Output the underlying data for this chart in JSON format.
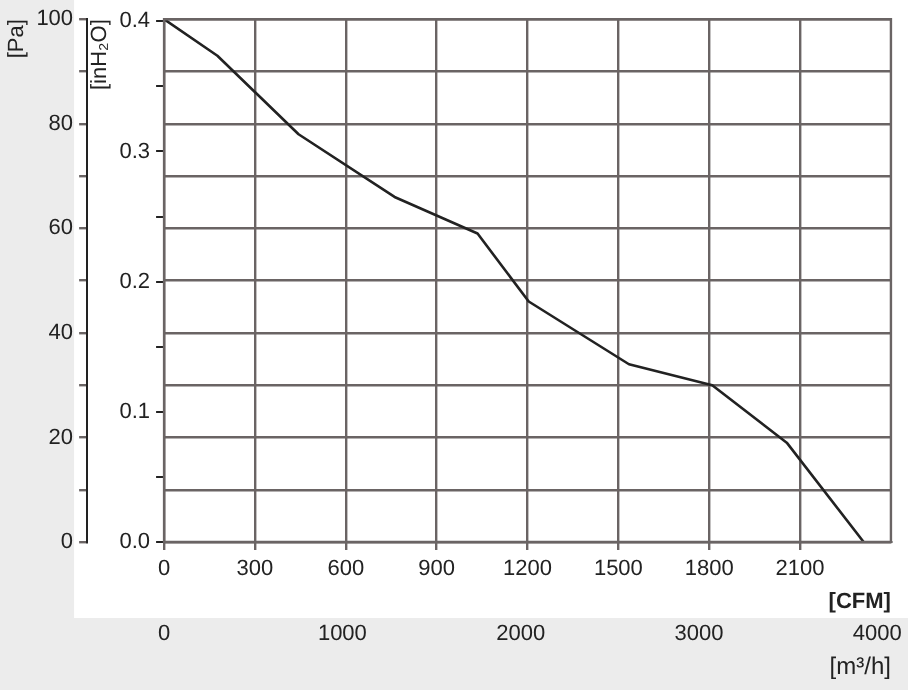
{
  "chart_data": {
    "type": "line",
    "xlabel": "[CFM]",
    "ylabel": "[Pa]",
    "y2label": "[inH₂O]",
    "x2label": "[m³/h]",
    "x": [
      0,
      176,
      444,
      761,
      1035,
      1204,
      1535,
      1810,
      2056,
      2310
    ],
    "series": [
      {
        "color": "#222222",
        "values": [
          100,
          93,
          78,
          66,
          59,
          46,
          34,
          30,
          19,
          0
        ]
      }
    ],
    "xlim": [
      0,
      2400
    ],
    "xticks": [
      0,
      300,
      600,
      900,
      1200,
      1500,
      1800,
      2100
    ],
    "x2lim": [
      0,
      4077
    ],
    "x2ticks": [
      0,
      1000,
      2000,
      3000,
      4000
    ],
    "ylim": [
      0,
      100
    ],
    "yticks": [
      0,
      {
        "value": 10,
        "label": null
      },
      20,
      {
        "value": 30,
        "label": null
      },
      40,
      {
        "value": 50,
        "label": null
      },
      60,
      {
        "value": 70,
        "label": null
      },
      80,
      {
        "value": 90,
        "label": null
      },
      100
    ],
    "y2lim": [
      0,
      0.4016
    ],
    "y2ticks": [
      {
        "value": 0,
        "label": "0.0"
      },
      {
        "value": 0.05,
        "label": null
      },
      0.1,
      {
        "value": 0.15,
        "label": null
      },
      0.2,
      {
        "value": 0.25,
        "label": null
      },
      0.3,
      {
        "value": 0.35,
        "label": null
      },
      0.4
    ],
    "grid": true,
    "marker": "none",
    "line_style": "solid",
    "legend": false
  }
}
